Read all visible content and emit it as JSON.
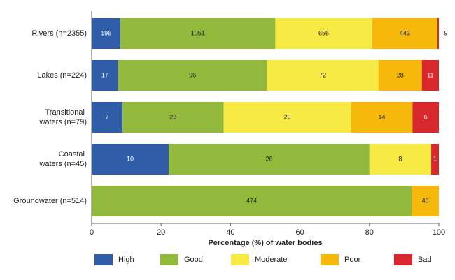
{
  "chart_data": {
    "type": "stacked-bar-horizontal",
    "x_label": "Percentage (%) of water bodies",
    "categories": [
      "Rivers (n=2355)",
      "Lakes (n=224)",
      "Transitional waters (n=79)",
      "Coastal waters (n=45)",
      "Groundwater (n=514)"
    ],
    "xlim": [
      0,
      100
    ],
    "xticks": [
      0,
      20,
      40,
      60,
      80,
      100
    ],
    "series": [
      {
        "name": "High",
        "color": "#2f5da8",
        "label_color": "#ffffff",
        "values": [
          8.3,
          7.6,
          8.9,
          22.2,
          null
        ],
        "value_labels": [
          "196",
          "17",
          "7",
          "10",
          null
        ]
      },
      {
        "name": "Good",
        "color": "#93b93c",
        "label_color": "#222222",
        "values": [
          44.6,
          42.9,
          29.1,
          57.8,
          92.2
        ],
        "value_labels": [
          "1051",
          "96",
          "23",
          "26",
          "474"
        ]
      },
      {
        "name": "Moderate",
        "color": "#f8ea45",
        "label_color": "#222222",
        "values": [
          27.9,
          32.1,
          36.7,
          17.8,
          null
        ],
        "value_labels": [
          "656",
          "72",
          "29",
          "8",
          null
        ]
      },
      {
        "name": "Poor",
        "color": "#f5b80b",
        "label_color": "#222222",
        "values": [
          18.8,
          12.5,
          17.7,
          null,
          7.8
        ],
        "value_labels": [
          "443",
          "28",
          "14",
          null,
          "40"
        ]
      },
      {
        "name": "Bad",
        "color": "#d8282b",
        "label_color": "#ffffff",
        "values": [
          0.4,
          4.9,
          7.6,
          2.2,
          null
        ],
        "value_labels": [
          "9",
          "11",
          "6",
          "1",
          null
        ]
      }
    ]
  }
}
